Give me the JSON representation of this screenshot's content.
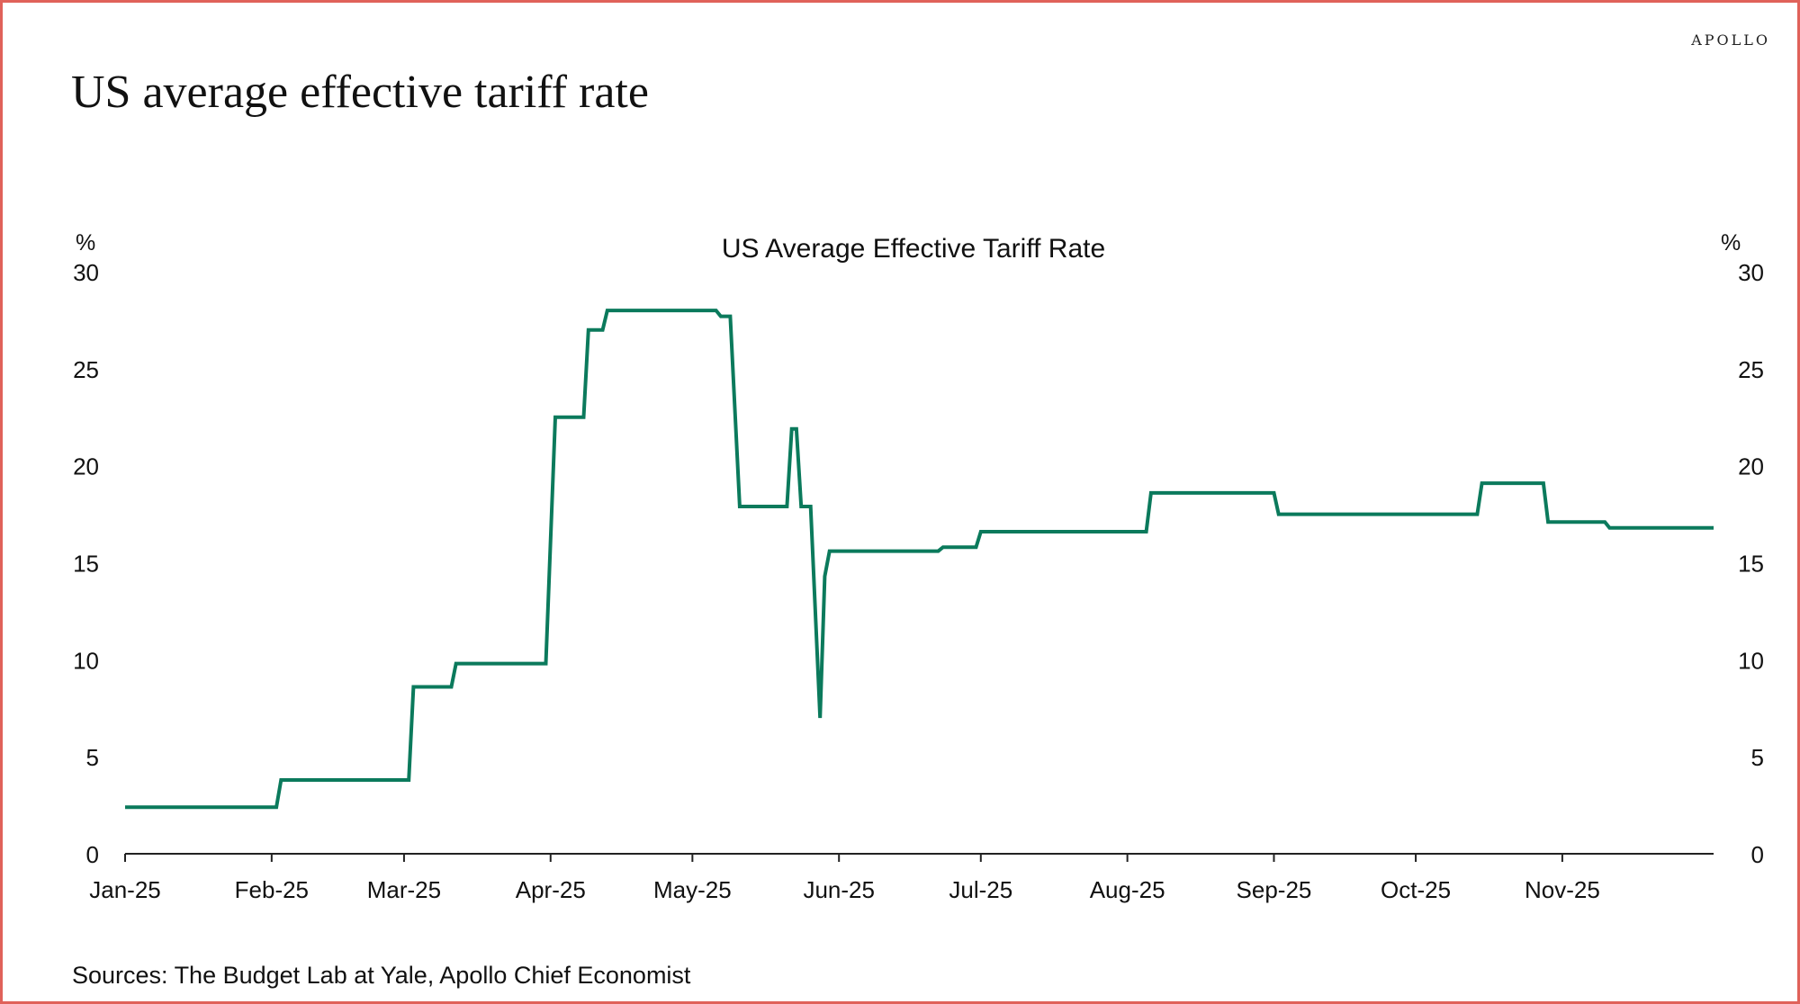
{
  "brand": "APOLLO",
  "page_title": "US average effective tariff rate",
  "source": "Sources: The Budget Lab at Yale, Apollo Chief Economist",
  "colors": {
    "line": "#0b7a5c",
    "border": "#e0625a",
    "axis": "#222222"
  },
  "chart_data": {
    "type": "line",
    "title": "US Average Effective Tariff Rate",
    "y_unit_left": "%",
    "y_unit_right": "%",
    "ylim": [
      0,
      30
    ],
    "yticks": [
      0,
      5,
      10,
      15,
      20,
      25,
      30
    ],
    "xticks": [
      {
        "label": "Jan-25",
        "date": "2025-01-01"
      },
      {
        "label": "Feb-25",
        "date": "2025-02-01"
      },
      {
        "label": "Mar-25",
        "date": "2025-03-01"
      },
      {
        "label": "Apr-25",
        "date": "2025-04-01"
      },
      {
        "label": "May-25",
        "date": "2025-05-01"
      },
      {
        "label": "Jun-25",
        "date": "2025-06-01"
      },
      {
        "label": "Jul-25",
        "date": "2025-07-01"
      },
      {
        "label": "Aug-25",
        "date": "2025-08-01"
      },
      {
        "label": "Sep-25",
        "date": "2025-09-01"
      },
      {
        "label": "Oct-25",
        "date": "2025-10-01"
      },
      {
        "label": "Nov-25",
        "date": "2025-11-01"
      }
    ],
    "xlim": [
      "2025-01-01",
      "2025-12-03"
    ],
    "grid": false,
    "series": [
      {
        "points": [
          [
            "2025-01-01",
            2.4
          ],
          [
            "2025-02-02",
            2.4
          ],
          [
            "2025-02-03",
            3.8
          ],
          [
            "2025-03-02",
            3.8
          ],
          [
            "2025-03-03",
            8.6
          ],
          [
            "2025-03-11",
            8.6
          ],
          [
            "2025-03-12",
            9.8
          ],
          [
            "2025-03-31",
            9.8
          ],
          [
            "2025-04-02",
            22.5
          ],
          [
            "2025-04-08",
            22.5
          ],
          [
            "2025-04-09",
            27.0
          ],
          [
            "2025-04-12",
            27.0
          ],
          [
            "2025-04-13",
            28.0
          ],
          [
            "2025-05-06",
            28.0
          ],
          [
            "2025-05-07",
            27.7
          ],
          [
            "2025-05-09",
            27.7
          ],
          [
            "2025-05-11",
            17.9
          ],
          [
            "2025-05-21",
            17.9
          ],
          [
            "2025-05-22",
            21.9
          ],
          [
            "2025-05-23",
            21.9
          ],
          [
            "2025-05-24",
            17.9
          ],
          [
            "2025-05-26",
            17.9
          ],
          [
            "2025-05-28",
            7.0
          ],
          [
            "2025-05-29",
            14.3
          ],
          [
            "2025-05-30",
            15.6
          ],
          [
            "2025-06-22",
            15.6
          ],
          [
            "2025-06-23",
            15.8
          ],
          [
            "2025-06-30",
            15.8
          ],
          [
            "2025-07-01",
            16.6
          ],
          [
            "2025-08-05",
            16.6
          ],
          [
            "2025-08-06",
            18.6
          ],
          [
            "2025-09-01",
            18.6
          ],
          [
            "2025-09-02",
            17.5
          ],
          [
            "2025-10-14",
            17.5
          ],
          [
            "2025-10-15",
            19.1
          ],
          [
            "2025-10-28",
            19.1
          ],
          [
            "2025-10-29",
            17.1
          ],
          [
            "2025-11-10",
            17.1
          ],
          [
            "2025-11-11",
            16.8
          ],
          [
            "2025-12-03",
            16.8
          ]
        ]
      }
    ]
  }
}
